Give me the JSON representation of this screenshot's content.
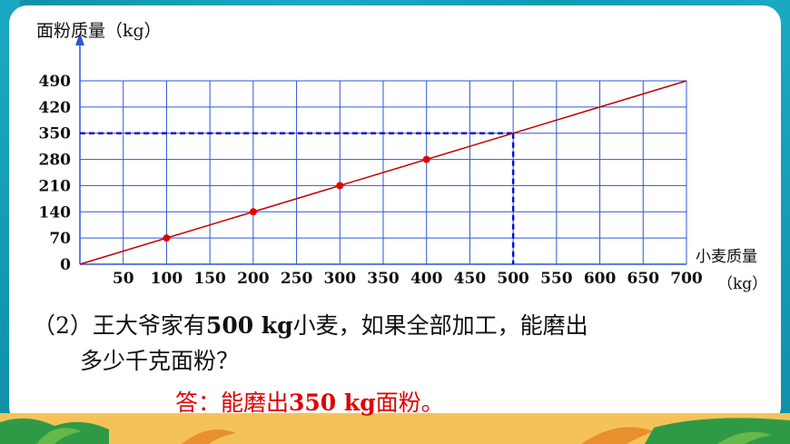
{
  "question": {
    "prefix": "（2）王大爷家有",
    "amount": "500 kg",
    "middle": "小麦，如果全部加工，能磨出",
    "line2": "多少千克面粉？"
  },
  "answer": {
    "prefix": "答：能磨出",
    "amount": "350 kg",
    "suffix": "面粉。"
  },
  "colors": {
    "grid": "#2b57d6",
    "line": "#c40000",
    "point": "#e60000",
    "guide": "#1010c8",
    "answer": "#e10000"
  },
  "chart_data": {
    "type": "line",
    "ylabel": "面粉质量（kg）",
    "xlabel": "小麦质量",
    "xunit": "（kg）",
    "xlim": [
      0,
      700
    ],
    "ylim": [
      0,
      490
    ],
    "x_ticks": [
      50,
      100,
      150,
      200,
      250,
      300,
      350,
      400,
      450,
      500,
      550,
      600,
      650,
      700
    ],
    "y_ticks": [
      0,
      70,
      140,
      210,
      280,
      350,
      420,
      490
    ],
    "grid": true,
    "line": {
      "x": [
        0,
        700
      ],
      "y": [
        0,
        490
      ]
    },
    "points": [
      {
        "x": 100,
        "y": 70
      },
      {
        "x": 200,
        "y": 140
      },
      {
        "x": 300,
        "y": 210
      },
      {
        "x": 400,
        "y": 280
      }
    ],
    "guide": {
      "x": 500,
      "y": 350
    }
  }
}
